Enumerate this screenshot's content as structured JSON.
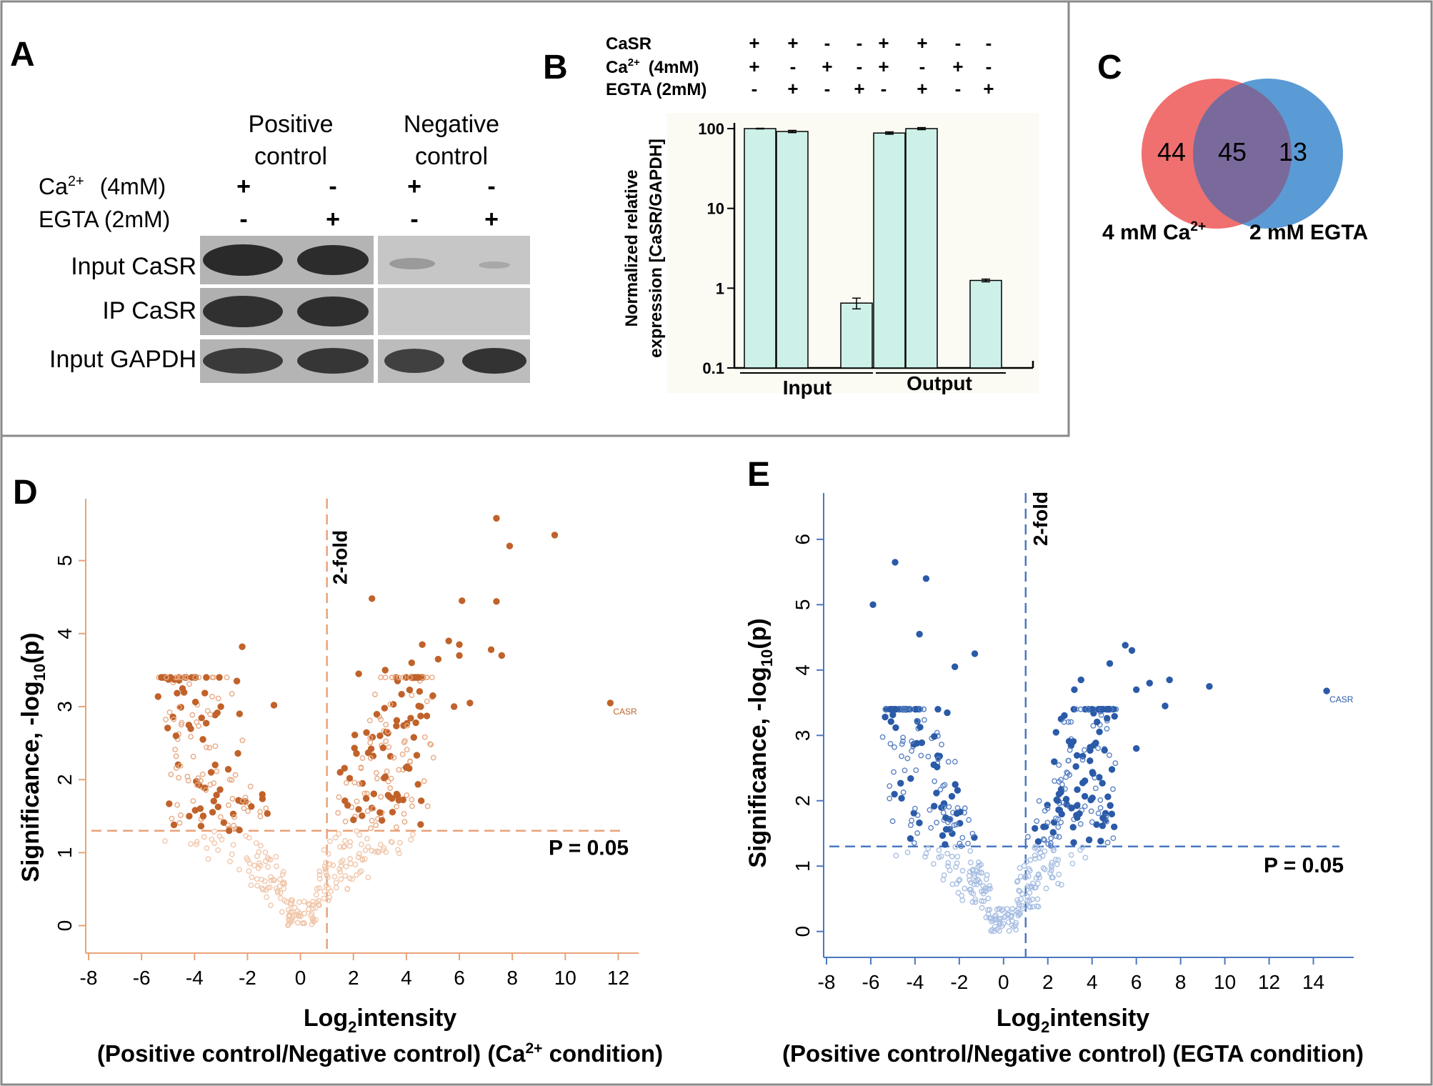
{
  "panel_labels": {
    "a": "A",
    "b": "B",
    "c": "C",
    "d": "D",
    "e": "E"
  },
  "panel_a": {
    "header_positive": [
      "Positive",
      "control"
    ],
    "header_negative": [
      "Negative",
      "control"
    ],
    "row_ca": {
      "label_base": "Ca",
      "label_sup": "2+",
      "label_rest": "(4mM)",
      "signs": [
        "+",
        "-",
        "+",
        "-"
      ]
    },
    "row_egta": {
      "label": "EGTA (2mM)",
      "signs": [
        "-",
        "+",
        "-",
        "+"
      ]
    },
    "blot_rows": [
      "Input CaSR",
      "IP CaSR",
      "Input GAPDH"
    ]
  },
  "panel_b": {
    "condition_rows": [
      {
        "label": "CaSR",
        "signs": [
          "+",
          "+",
          "-",
          "-",
          "+",
          "+",
          "-",
          "-"
        ]
      },
      {
        "label_base": "Ca",
        "label_sup": "2+",
        "label_rest": "(4mM)",
        "signs": [
          "+",
          "-",
          "+",
          "-",
          "+",
          "-",
          "+",
          "-"
        ]
      },
      {
        "label": "EGTA (2mM)",
        "signs": [
          "-",
          "+",
          "-",
          "+",
          "-",
          "+",
          "-",
          "+"
        ]
      }
    ],
    "chart_data": {
      "type": "bar",
      "scale": "log",
      "ylabel": [
        "Normalized relative",
        "expression [CaSR/GAPDH]"
      ],
      "yticks": [
        0.1,
        1,
        10,
        100
      ],
      "ytick_labels": [
        "0.1",
        "1",
        "10",
        "100"
      ],
      "ylim": [
        0.1,
        100
      ],
      "groups": [
        "Input",
        "Output"
      ],
      "values": [
        100,
        92,
        0.1,
        0.65,
        88,
        100,
        0.1,
        1.25
      ],
      "errors": [
        1,
        3,
        0,
        0.1,
        3,
        3,
        0,
        0.05
      ]
    }
  },
  "panel_c": {
    "chart_data": {
      "type": "venn",
      "sets": [
        "4 mM Ca2+",
        "2 mM EGTA"
      ],
      "only_a": 44,
      "both": 45,
      "only_b": 13,
      "colors": {
        "a": "#f07070",
        "b": "#5b9bd5",
        "overlap": "#7a6a9c"
      }
    },
    "label_a_base": "4 mM Ca",
    "label_a_sup": "2+",
    "label_b": "2 mM EGTA",
    "n_a": "44",
    "n_both": "45",
    "n_b": "13"
  },
  "panel_d": {
    "color_fill": "#c0622a",
    "color_open": "#e8a882",
    "color_light": "#f1c7ab",
    "color_axis": "#e9a278",
    "xlim": [
      -8,
      12.5
    ],
    "ylim": [
      -0.2,
      5.75
    ],
    "xticks": [
      -8,
      -6,
      -4,
      -2,
      0,
      2,
      4,
      6,
      8,
      10,
      12
    ],
    "yticks": [
      0,
      1,
      2,
      3,
      4,
      5
    ],
    "threshold_x": 1,
    "threshold_y": 1.3,
    "fold_label": "2-fold",
    "p_label": "P = 0.05",
    "ylabel_main": "Significance, -log",
    "ylabel_sub": "10",
    "ylabel_end": "(p)",
    "xlabel_main": "Log",
    "xlabel_sub": "2",
    "xlabel_end": "intensity",
    "caption_a": "(Positive control/Negative control) (Ca",
    "caption_sup": "2+",
    "caption_b": " condition)",
    "casr_point": {
      "x": 11.7,
      "y": 3.05,
      "label": "CASR"
    },
    "chart_data": {
      "type": "scatter",
      "xlabel": "Log2 intensity",
      "ylabel": "Significance, -log10(p)",
      "significant_highlights": [
        [
          7.4,
          5.58
        ],
        [
          9.6,
          5.35
        ],
        [
          7.9,
          5.2
        ],
        [
          2.7,
          4.48
        ],
        [
          6.1,
          4.45
        ],
        [
          7.4,
          4.44
        ],
        [
          5.6,
          3.9
        ],
        [
          4.6,
          3.85
        ],
        [
          6.0,
          3.85
        ],
        [
          6.0,
          3.7
        ],
        [
          7.2,
          3.78
        ],
        [
          7.6,
          3.7
        ],
        [
          5.2,
          3.65
        ],
        [
          4.2,
          3.6
        ],
        [
          2.2,
          3.45
        ],
        [
          3.2,
          3.5
        ],
        [
          5.0,
          3.15
        ],
        [
          6.4,
          3.05
        ],
        [
          5.8,
          3.0
        ],
        [
          -2.2,
          3.82
        ],
        [
          -2.4,
          3.35
        ],
        [
          -1.0,
          3.02
        ],
        [
          -4.7,
          2.6
        ],
        [
          -2.3,
          2.9
        ],
        [
          -4.2,
          1.5
        ],
        [
          1.5,
          2.1
        ],
        [
          3.0,
          1.55
        ],
        [
          2.0,
          1.45
        ]
      ],
      "casr": {
        "x": 11.7,
        "y": 3.05
      }
    }
  },
  "panel_e": {
    "color_fill": "#2a5aa8",
    "color_open": "#5b82c4",
    "color_light": "#a8bfe3",
    "color_axis": "#4a78c0",
    "xlim": [
      -8,
      15.5
    ],
    "ylim": [
      -0.2,
      6.6
    ],
    "xticks": [
      -8,
      -6,
      -4,
      -2,
      0,
      2,
      4,
      6,
      8,
      10,
      12,
      14
    ],
    "yticks": [
      0,
      1,
      2,
      3,
      4,
      5,
      6
    ],
    "threshold_x": 1,
    "threshold_y": 1.3,
    "fold_label": "2-fold",
    "p_label": "P = 0.05",
    "ylabel_main": "Significance, -log",
    "ylabel_sub": "10",
    "ylabel_end": "(p)",
    "xlabel_main": "Log",
    "xlabel_sub": "2",
    "xlabel_end": "intensity",
    "caption_text": "(Positive control/Negative control) (EGTA condition)",
    "casr_point": {
      "x": 14.6,
      "y": 3.68,
      "label": "CASR"
    },
    "chart_data": {
      "type": "scatter",
      "xlabel": "Log2 intensity",
      "ylabel": "Significance, -log10(p)",
      "significant_highlights": [
        [
          5.5,
          4.38
        ],
        [
          5.8,
          4.3
        ],
        [
          4.8,
          4.1
        ],
        [
          7.5,
          3.85
        ],
        [
          9.3,
          3.75
        ],
        [
          6.6,
          3.8
        ],
        [
          6.0,
          3.7
        ],
        [
          7.3,
          3.45
        ],
        [
          3.5,
          3.85
        ],
        [
          3.2,
          3.7
        ],
        [
          -4.9,
          5.65
        ],
        [
          -3.5,
          5.4
        ],
        [
          -1.3,
          4.25
        ],
        [
          -2.2,
          4.05
        ],
        [
          5.0,
          1.6
        ],
        [
          6.0,
          2.8
        ],
        [
          -5.9,
          5.0
        ],
        [
          -3.8,
          4.55
        ]
      ],
      "casr": {
        "x": 14.6,
        "y": 3.68
      }
    }
  }
}
